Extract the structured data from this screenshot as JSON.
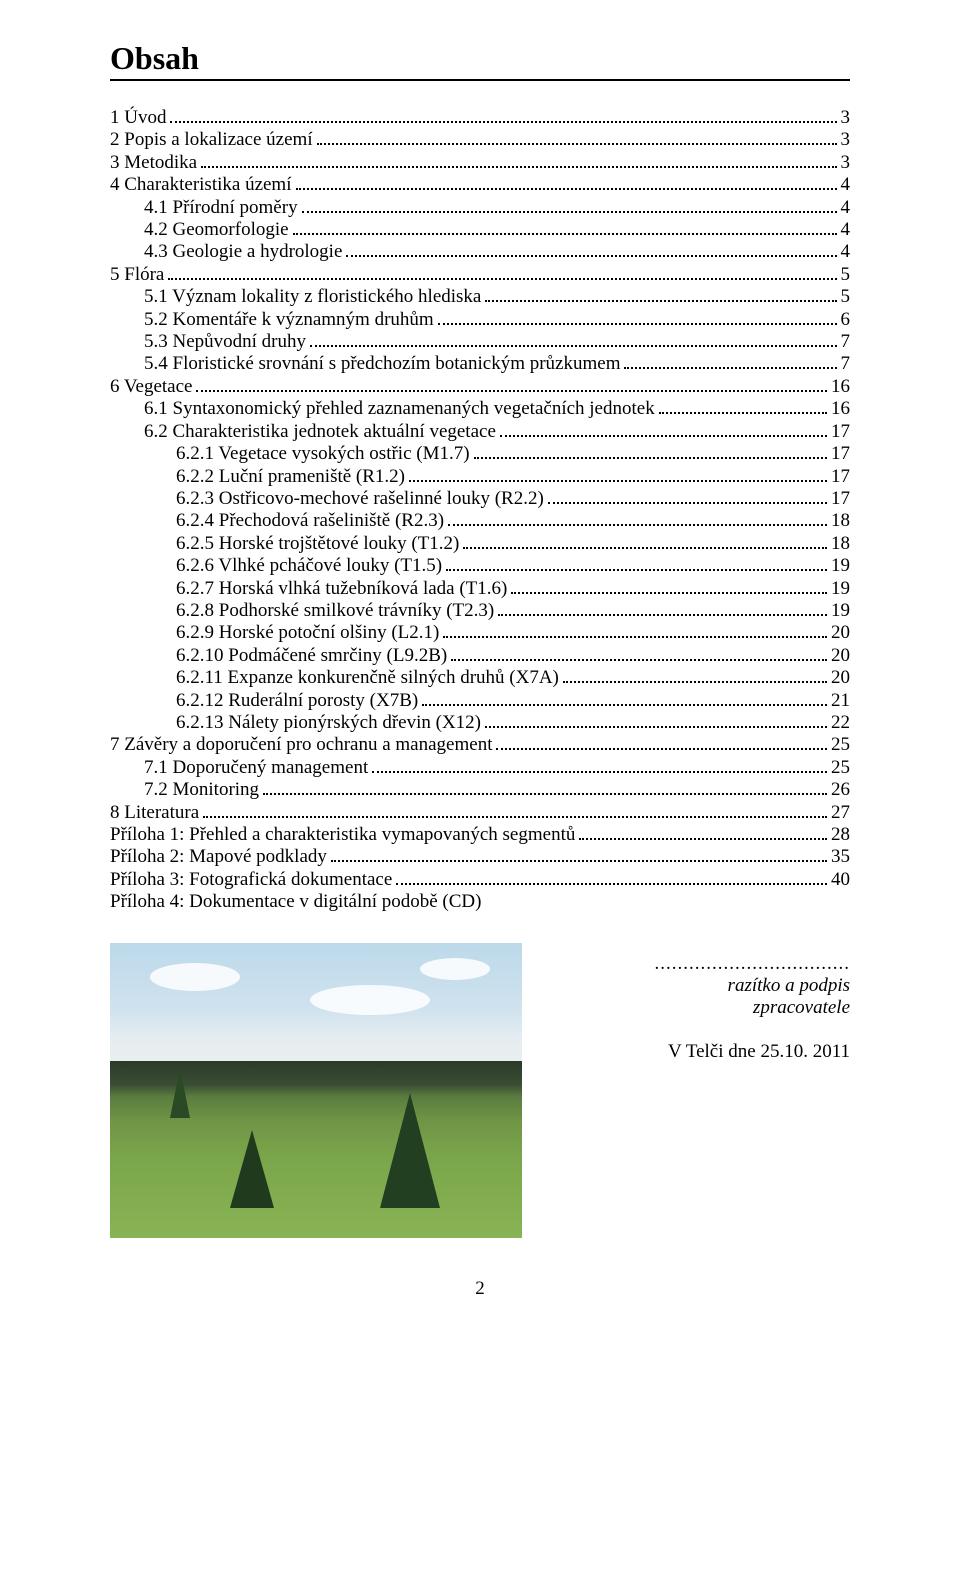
{
  "title": "Obsah",
  "toc": [
    {
      "label": "1 Úvod",
      "page": "3",
      "indent": 0
    },
    {
      "label": "2 Popis a lokalizace území",
      "page": "3",
      "indent": 0
    },
    {
      "label": "3 Metodika",
      "page": "3",
      "indent": 0
    },
    {
      "label": "4 Charakteristika území",
      "page": "4",
      "indent": 0
    },
    {
      "label": "4.1 Přírodní poměry",
      "page": "4",
      "indent": 1
    },
    {
      "label": "4.2 Geomorfologie",
      "page": "4",
      "indent": 1
    },
    {
      "label": "4.3 Geologie a hydrologie",
      "page": "4",
      "indent": 1
    },
    {
      "label": "5 Flóra",
      "page": "5",
      "indent": 0
    },
    {
      "label": "5.1 Význam lokality z floristického hlediska",
      "page": "5",
      "indent": 1
    },
    {
      "label": "5.2 Komentáře k významným druhům",
      "page": "6",
      "indent": 1
    },
    {
      "label": "5.3 Nepůvodní druhy",
      "page": "7",
      "indent": 1
    },
    {
      "label": "5.4 Floristické srovnání s předchozím botanickým průzkumem",
      "page": "7",
      "indent": 1
    },
    {
      "label": "6 Vegetace",
      "page": "16",
      "indent": 0
    },
    {
      "label": "6.1 Syntaxonomický přehled zaznamenaných vegetačních jednotek",
      "page": "16",
      "indent": 1
    },
    {
      "label": "6.2 Charakteristika jednotek aktuální vegetace",
      "page": "17",
      "indent": 1
    },
    {
      "label": "6.2.1 Vegetace vysokých ostřic (M1.7)",
      "page": "17",
      "indent": 2
    },
    {
      "label": "6.2.2 Luční prameniště (R1.2)",
      "page": "17",
      "indent": 2
    },
    {
      "label": "6.2.3 Ostřicovo-mechové rašelinné louky (R2.2)",
      "page": "17",
      "indent": 2
    },
    {
      "label": "6.2.4 Přechodová rašeliniště (R2.3)",
      "page": "18",
      "indent": 2
    },
    {
      "label": "6.2.5 Horské trojštětové louky (T1.2)",
      "page": "18",
      "indent": 2
    },
    {
      "label": "6.2.6 Vlhké pcháčové louky (T1.5)",
      "page": "19",
      "indent": 2
    },
    {
      "label": "6.2.7 Horská vlhká tužebníková lada (T1.6)",
      "page": "19",
      "indent": 2
    },
    {
      "label": "6.2.8 Podhorské smilkové trávníky (T2.3)",
      "page": "19",
      "indent": 2
    },
    {
      "label": "6.2.9 Horské potoční olšiny (L2.1)",
      "page": "20",
      "indent": 2
    },
    {
      "label": "6.2.10 Podmáčené smrčiny (L9.2B)",
      "page": "20",
      "indent": 2
    },
    {
      "label": "6.2.11 Expanze konkurenčně silných druhů (X7A)",
      "page": "20",
      "indent": 2
    },
    {
      "label": "6.2.12 Ruderální porosty (X7B)",
      "page": "21",
      "indent": 2
    },
    {
      "label": "6.2.13 Nálety pionýrských dřevin (X12)",
      "page": "22",
      "indent": 2
    },
    {
      "label": "7 Závěry a doporučení pro ochranu a management",
      "page": "25",
      "indent": 0
    },
    {
      "label": "7.1 Doporučený management",
      "page": "25",
      "indent": 1
    },
    {
      "label": "7.2 Monitoring",
      "page": "26",
      "indent": 1
    },
    {
      "label": "8 Literatura",
      "page": "27",
      "indent": 0
    },
    {
      "label": "Příloha 1: Přehled a charakteristika vymapovaných segmentů",
      "page": "28",
      "indent": 0
    },
    {
      "label": "Příloha 2: Mapové podklady",
      "page": "35",
      "indent": 0
    },
    {
      "label": "Příloha 3: Fotografická dokumentace",
      "page": "40",
      "indent": 0
    }
  ],
  "plain_line": "Příloha 4: Dokumentace v digitální podobě (CD)",
  "signature": {
    "dots": "..................................",
    "line1": "razítko a podpis",
    "line2": "zpracovatele",
    "date": "V Telči dne 25.10. 2011"
  },
  "page_number": "2"
}
